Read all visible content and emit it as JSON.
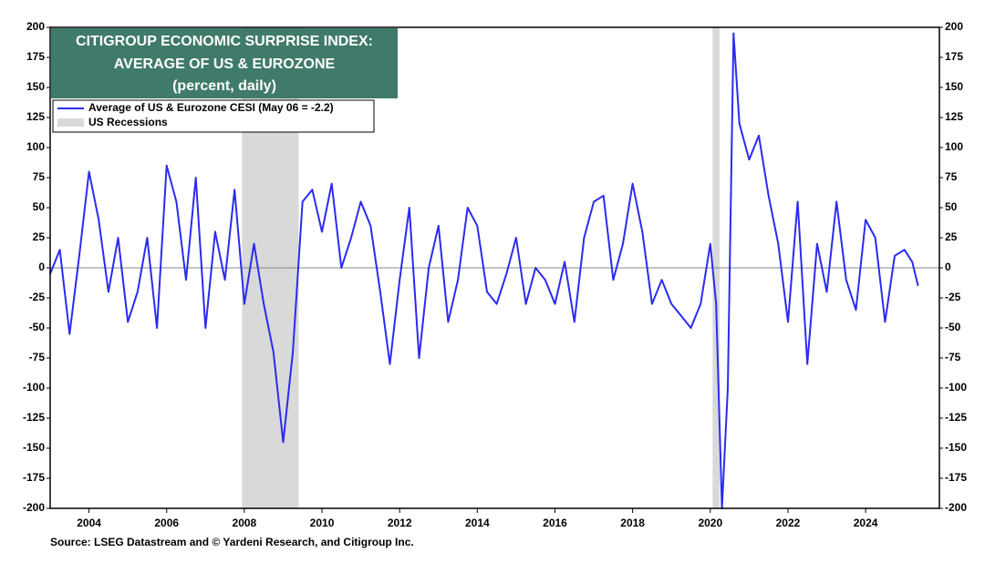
{
  "chart_data": {
    "type": "line",
    "title": "CITIGROUP ECONOMIC SURPRISE INDEX:",
    "title_line2": "AVERAGE OF US & EUROZONE",
    "subtitle": "(percent, daily)",
    "source": "Source: LSEG Datastream and © Yardeni Research, and Citigroup Inc.",
    "x": [
      2003.0,
      2003.25,
      2003.5,
      2003.75,
      2004.0,
      2004.25,
      2004.5,
      2004.75,
      2005.0,
      2005.25,
      2005.5,
      2005.75,
      2006.0,
      2006.25,
      2006.5,
      2006.75,
      2007.0,
      2007.25,
      2007.5,
      2007.75,
      2008.0,
      2008.25,
      2008.5,
      2008.75,
      2009.0,
      2009.25,
      2009.5,
      2009.75,
      2010.0,
      2010.25,
      2010.5,
      2010.75,
      2011.0,
      2011.25,
      2011.5,
      2011.75,
      2012.0,
      2012.25,
      2012.5,
      2012.75,
      2013.0,
      2013.25,
      2013.5,
      2013.75,
      2014.0,
      2014.25,
      2014.5,
      2014.75,
      2015.0,
      2015.25,
      2015.5,
      2015.75,
      2016.0,
      2016.25,
      2016.5,
      2016.75,
      2017.0,
      2017.25,
      2017.5,
      2017.75,
      2018.0,
      2018.25,
      2018.5,
      2018.75,
      2019.0,
      2019.25,
      2019.5,
      2019.75,
      2020.0,
      2020.15,
      2020.3,
      2020.45,
      2020.6,
      2020.75,
      2021.0,
      2021.25,
      2021.5,
      2021.75,
      2022.0,
      2022.25,
      2022.5,
      2022.75,
      2023.0,
      2023.25,
      2023.5,
      2023.75,
      2024.0,
      2024.25,
      2024.5,
      2024.75,
      2025.0,
      2025.2,
      2025.35
    ],
    "series": [
      {
        "name": "Average of US & Eurozone CESI (May 06 = -2.2)",
        "color": "#2b2bf0",
        "values": [
          -5,
          15,
          -55,
          10,
          80,
          40,
          -20,
          25,
          -45,
          -20,
          25,
          -50,
          85,
          55,
          -10,
          75,
          -50,
          30,
          -10,
          65,
          -30,
          20,
          -30,
          -70,
          -145,
          -70,
          55,
          65,
          30,
          70,
          0,
          25,
          55,
          35,
          -20,
          -80,
          -10,
          50,
          -75,
          0,
          35,
          -45,
          -10,
          50,
          35,
          -20,
          -30,
          -5,
          25,
          -30,
          0,
          -10,
          -30,
          5,
          -45,
          25,
          55,
          60,
          -10,
          20,
          70,
          30,
          -30,
          -10,
          -30,
          -40,
          -50,
          -30,
          20,
          -30,
          -200,
          -100,
          195,
          120,
          90,
          110,
          60,
          20,
          -45,
          55,
          -80,
          20,
          -20,
          55,
          -10,
          -35,
          40,
          25,
          -45,
          10,
          15,
          5,
          -15
        ]
      }
    ],
    "recessions_name": "US Recessions",
    "recessions": [
      [
        2007.94,
        2009.4
      ],
      [
        2020.06,
        2020.24
      ]
    ],
    "recession_color": "#d9d9d9",
    "xlim": [
      2003,
      2025.9
    ],
    "xticks": [
      2004,
      2006,
      2008,
      2010,
      2012,
      2014,
      2016,
      2018,
      2020,
      2022,
      2024
    ],
    "ylim": [
      -200,
      200
    ],
    "yticks": [
      -200,
      -175,
      -150,
      -125,
      -100,
      -75,
      -50,
      -25,
      0,
      25,
      50,
      75,
      100,
      125,
      150,
      175,
      200
    ]
  }
}
